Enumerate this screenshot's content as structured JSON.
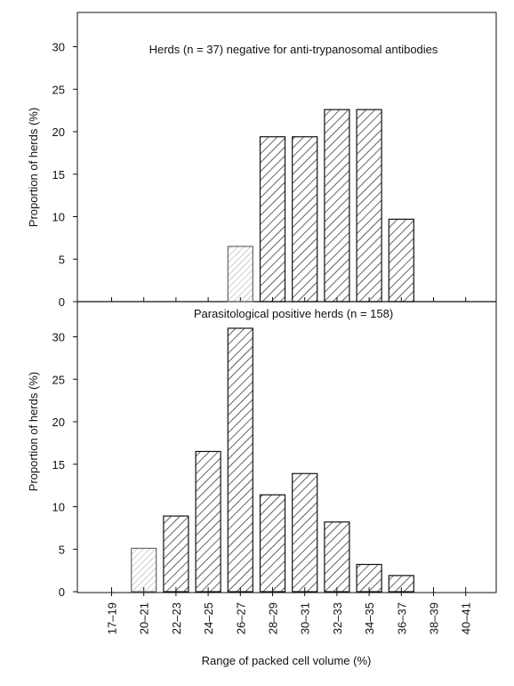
{
  "chart_data": [
    {
      "type": "bar",
      "title": "Herds (n = 37) negative for anti-trypanosomal antibodies",
      "ylabel": "Proportion of herds (%)",
      "xlabel": "",
      "categories": [
        "17–19",
        "20–21",
        "22–23",
        "24–25",
        "26–27",
        "28–29",
        "30–31",
        "32–33",
        "34–35",
        "36–37",
        "38–39",
        "40–41"
      ],
      "values": [
        0,
        0,
        0,
        0,
        6.5,
        19.4,
        19.4,
        22.6,
        22.6,
        9.7,
        0,
        0
      ],
      "ylim": [
        0,
        35
      ],
      "yticks": [
        0,
        5,
        10,
        15,
        20,
        25,
        30
      ]
    },
    {
      "type": "bar",
      "title": "Parasitological positive herds (n = 158)",
      "ylabel": "Proportion of herds (%)",
      "xlabel": "Range of packed cell volume (%)",
      "categories": [
        "17–19",
        "20–21",
        "22–23",
        "24–25",
        "26–27",
        "28–29",
        "30–31",
        "32–33",
        "34–35",
        "36–37",
        "38–39",
        "40–41"
      ],
      "values": [
        0,
        5.1,
        8.9,
        16.5,
        31.0,
        11.4,
        13.9,
        8.2,
        3.2,
        1.9,
        0,
        0
      ],
      "ylim": [
        0,
        35
      ],
      "yticks": [
        0,
        5,
        10,
        15,
        20,
        25,
        30
      ]
    }
  ]
}
